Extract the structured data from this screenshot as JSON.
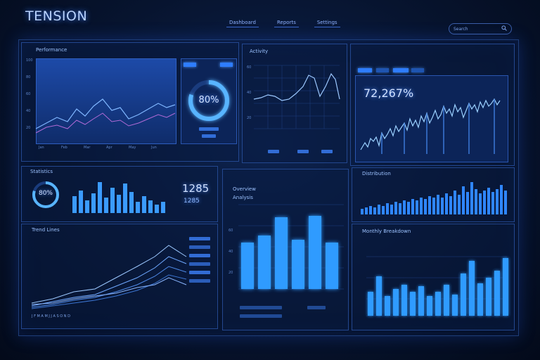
{
  "app": {
    "title": "TENSION"
  },
  "nav": {
    "items": [
      "Dashboard",
      "Reports",
      "Settings"
    ]
  },
  "search": {
    "placeholder": "Search"
  },
  "panels": {
    "p1": {
      "title": "Performance"
    },
    "gauge1": {
      "value": "80%"
    },
    "p2": {
      "title": "Activity"
    },
    "p3": {
      "value": "72,267%"
    },
    "p4": {
      "title": "Statistics",
      "gauge": "80%",
      "num1": "1285",
      "num2": "1285"
    },
    "p5": {
      "title": "Overview",
      "subtitle": "Analysis"
    },
    "p6": {
      "title": "Distribution"
    },
    "p7": {
      "title": "Trend Lines"
    },
    "p8": {
      "title": "Monthly Breakdown"
    }
  },
  "colors": {
    "accent": "#2e7dff",
    "panel_border": "#23478f",
    "bg": "#07142f"
  },
  "icons": {
    "search": "search-icon"
  }
}
